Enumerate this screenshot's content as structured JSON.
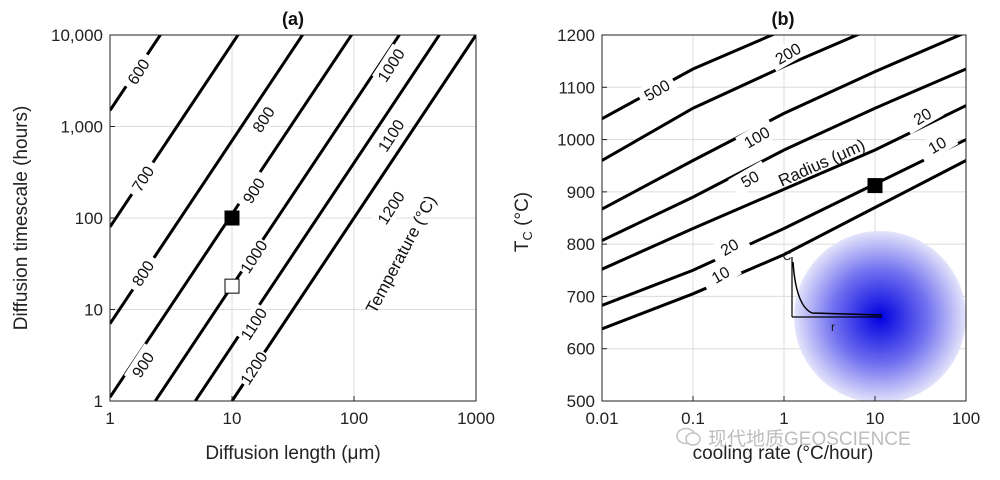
{
  "chart_data": [
    {
      "type": "line",
      "panel": "(a)",
      "xlabel": "Diffusion length (μm)",
      "ylabel": "Diffusion timescale (hours)",
      "xscale": "log",
      "yscale": "log",
      "xlim": [
        1,
        1000
      ],
      "ylim": [
        1,
        10000
      ],
      "xticks": [
        1,
        10,
        100,
        1000
      ],
      "xtick_labels": [
        "1",
        "10",
        "100",
        "1000"
      ],
      "yticks": [
        1,
        10,
        100,
        1000,
        10000
      ],
      "ytick_labels": [
        "1",
        "10",
        "100",
        "1,000",
        "10,000"
      ],
      "grid": true,
      "annotation": "Temperature (°C)",
      "series": [
        {
          "name": "600",
          "x": [
            1,
            10
          ],
          "y": [
            1500,
            150000
          ]
        },
        {
          "name": "700",
          "x": [
            1,
            100
          ],
          "y": [
            80,
            800000
          ]
        },
        {
          "name": "800",
          "x": [
            1,
            100
          ],
          "y": [
            7,
            70000
          ]
        },
        {
          "name": "900",
          "x": [
            1,
            1000
          ],
          "y": [
            1.1,
            1100000
          ]
        },
        {
          "name": "1000",
          "x": [
            2.35,
            1000
          ],
          "y": [
            1,
            181000
          ]
        },
        {
          "name": "1100",
          "x": [
            5,
            1000
          ],
          "y": [
            1,
            40000
          ]
        },
        {
          "name": "1200",
          "x": [
            10,
            1000
          ],
          "y": [
            1,
            10000
          ]
        }
      ],
      "contour_labels": [
        {
          "text": "600",
          "x": 1.7,
          "y": 4000
        },
        {
          "text": "800",
          "x": 18,
          "y": 1200
        },
        {
          "text": "1000",
          "x": 200,
          "y": 4700
        },
        {
          "text": "700",
          "x": 1.85,
          "y": 270
        },
        {
          "text": "900",
          "x": 15,
          "y": 200
        },
        {
          "text": "1100",
          "x": 200,
          "y": 800
        },
        {
          "text": "800",
          "x": 1.85,
          "y": 25
        },
        {
          "text": "1000",
          "x": 15,
          "y": 38
        },
        {
          "text": "1200",
          "x": 200,
          "y": 130
        },
        {
          "text": "900",
          "x": 1.85,
          "y": 2.5
        },
        {
          "text": "1100",
          "x": 15,
          "y": 7
        },
        {
          "text": "1200",
          "x": 15,
          "y": 2.3
        }
      ],
      "markers": [
        {
          "x": 10,
          "y": 100,
          "style": "filled-square"
        },
        {
          "x": 10,
          "y": 18,
          "style": "open-square"
        }
      ]
    },
    {
      "type": "line",
      "panel": "(b)",
      "xlabel": "cooling rate (°C/hour)",
      "ylabel": "T_C (°C)",
      "xscale": "log",
      "yscale": "linear",
      "xlim": [
        0.01,
        100
      ],
      "ylim": [
        500,
        1200
      ],
      "xticks": [
        0.01,
        0.1,
        1,
        10,
        100
      ],
      "xtick_labels": [
        "0.01",
        "0.1",
        "1",
        "10",
        "100"
      ],
      "yticks": [
        500,
        600,
        700,
        800,
        900,
        1000,
        1100,
        1200
      ],
      "ytick_labels": [
        "500",
        "600",
        "700",
        "800",
        "900",
        "1000",
        "1100",
        "1200"
      ],
      "grid": true,
      "annotation": "Radius (μm)",
      "series": [
        {
          "name": "500",
          "x": [
            0.01,
            0.1,
            1,
            10
          ],
          "y": [
            1040,
            1135,
            1210,
            1275
          ]
        },
        {
          "name": "200",
          "x": [
            0.01,
            0.1,
            1,
            10
          ],
          "y": [
            960,
            1060,
            1140,
            1215
          ]
        },
        {
          "name": "100",
          "x": [
            0.01,
            0.1,
            1,
            10,
            100
          ],
          "y": [
            867,
            960,
            1050,
            1130,
            1205
          ]
        },
        {
          "name": "50",
          "x": [
            0.01,
            0.1,
            1,
            10,
            100
          ],
          "y": [
            807,
            890,
            980,
            1060,
            1135
          ]
        },
        {
          "name": "20",
          "x": [
            0.01,
            0.1,
            1,
            10,
            100
          ],
          "y": [
            752,
            830,
            905,
            980,
            1065
          ]
        },
        {
          "name": "20",
          "x": [
            0.01,
            0.1,
            1,
            10,
            100
          ],
          "y": [
            683,
            750,
            830,
            915,
            1000
          ]
        },
        {
          "name": "10",
          "x": [
            0.01,
            0.1,
            1,
            10,
            100
          ],
          "y": [
            638,
            705,
            780,
            870,
            960
          ]
        }
      ],
      "contour_labels": [
        {
          "text": "500",
          "x": 0.04,
          "y": 1095
        },
        {
          "text": "200",
          "x": 1.1,
          "y": 1165
        },
        {
          "text": "100",
          "x": 0.5,
          "y": 1005
        },
        {
          "text": "50",
          "x": 0.42,
          "y": 925
        },
        {
          "text": "20",
          "x": 33,
          "y": 1045
        },
        {
          "text": "20",
          "x": 0.25,
          "y": 795
        },
        {
          "text": "10",
          "x": 48,
          "y": 990
        },
        {
          "text": "10",
          "x": 0.2,
          "y": 742
        }
      ],
      "markers": [
        {
          "x": 10,
          "y": 912,
          "style": "filled-square"
        }
      ],
      "inset": {
        "axis_labels": [
          "C",
          "r"
        ]
      }
    }
  ],
  "watermark": "现代地质GEOSCIENCE",
  "subscript_c": "C"
}
